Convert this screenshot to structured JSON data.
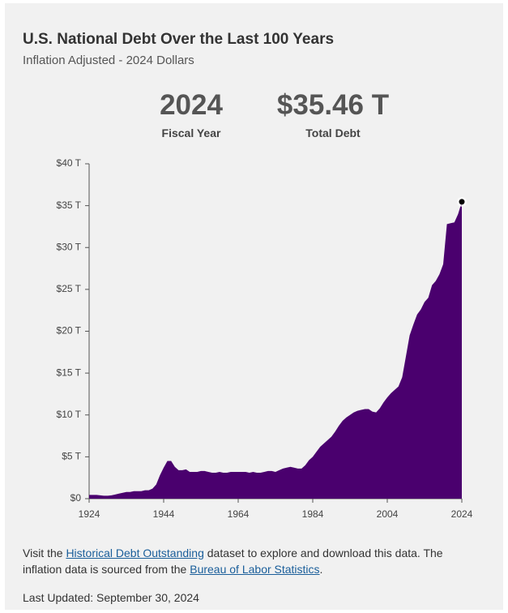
{
  "chart_data": {
    "type": "area",
    "title": "U.S. National Debt Over the Last 100 Years",
    "subtitle": "Inflation Adjusted - 2024 Dollars",
    "headline": {
      "year": "2024",
      "year_label": "Fiscal Year",
      "debt": "$35.46 T",
      "debt_label": "Total Debt"
    },
    "color": "#4a006e",
    "x": [
      1924,
      1925,
      1926,
      1927,
      1928,
      1929,
      1930,
      1931,
      1932,
      1933,
      1934,
      1935,
      1936,
      1937,
      1938,
      1939,
      1940,
      1941,
      1942,
      1943,
      1944,
      1945,
      1946,
      1947,
      1948,
      1949,
      1950,
      1951,
      1952,
      1953,
      1954,
      1955,
      1956,
      1957,
      1958,
      1959,
      1960,
      1961,
      1962,
      1963,
      1964,
      1965,
      1966,
      1967,
      1968,
      1969,
      1970,
      1971,
      1972,
      1973,
      1974,
      1975,
      1976,
      1977,
      1978,
      1979,
      1980,
      1981,
      1982,
      1983,
      1984,
      1985,
      1986,
      1987,
      1988,
      1989,
      1990,
      1991,
      1992,
      1993,
      1994,
      1995,
      1996,
      1997,
      1998,
      1999,
      2000,
      2001,
      2002,
      2003,
      2004,
      2005,
      2006,
      2007,
      2008,
      2009,
      2010,
      2011,
      2012,
      2013,
      2014,
      2015,
      2016,
      2017,
      2018,
      2019,
      2020,
      2021,
      2022,
      2023,
      2024
    ],
    "values": [
      0.45,
      0.45,
      0.45,
      0.4,
      0.35,
      0.35,
      0.4,
      0.5,
      0.6,
      0.7,
      0.8,
      0.8,
      0.9,
      0.9,
      0.9,
      1.0,
      1.0,
      1.2,
      1.7,
      2.8,
      3.7,
      4.5,
      4.5,
      3.8,
      3.4,
      3.4,
      3.5,
      3.2,
      3.2,
      3.2,
      3.3,
      3.3,
      3.2,
      3.1,
      3.1,
      3.2,
      3.1,
      3.1,
      3.2,
      3.2,
      3.2,
      3.2,
      3.2,
      3.1,
      3.2,
      3.1,
      3.1,
      3.2,
      3.3,
      3.3,
      3.2,
      3.4,
      3.6,
      3.7,
      3.8,
      3.7,
      3.6,
      3.6,
      4.0,
      4.6,
      5.0,
      5.6,
      6.2,
      6.6,
      7.0,
      7.4,
      8.0,
      8.7,
      9.3,
      9.7,
      10.0,
      10.3,
      10.5,
      10.6,
      10.7,
      10.7,
      10.4,
      10.3,
      10.8,
      11.5,
      12.1,
      12.6,
      13.0,
      13.4,
      14.5,
      17.0,
      19.5,
      20.8,
      22.0,
      22.6,
      23.5,
      24.0,
      25.5,
      26.0,
      26.8,
      28.0,
      32.8,
      32.9,
      33.0,
      34.0,
      35.46
    ],
    "xlim": [
      1924,
      2024
    ],
    "xticks": [
      1924,
      1944,
      1964,
      1984,
      2004,
      2024
    ],
    "ylim": [
      0,
      40
    ],
    "yticks": [
      {
        "value": 0,
        "label": "$0"
      },
      {
        "value": 5,
        "label": "$5 T"
      },
      {
        "value": 10,
        "label": "$10 T"
      },
      {
        "value": 15,
        "label": "$15 T"
      },
      {
        "value": 20,
        "label": "$20 T"
      },
      {
        "value": 25,
        "label": "$25 T"
      },
      {
        "value": 30,
        "label": "$30 T"
      },
      {
        "value": 35,
        "label": "$35 T"
      },
      {
        "value": 40,
        "label": "$40 T"
      }
    ]
  },
  "footer": {
    "text1": "Visit the ",
    "link1": "Historical Debt Outstanding",
    "text2": " dataset to explore and download this data. The inflation data is sourced from the ",
    "link2": "Bureau of Labor Statistics",
    "text3": ".",
    "last_updated": "Last Updated: September 30, 2024"
  }
}
